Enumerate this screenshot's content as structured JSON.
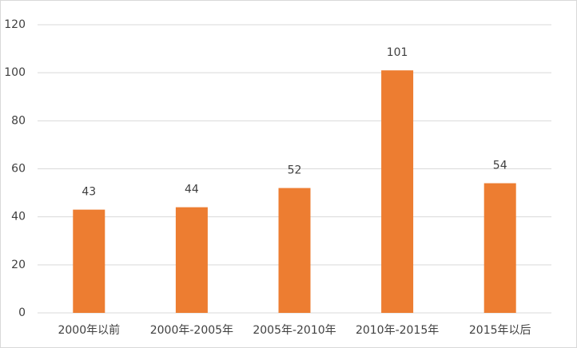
{
  "chart_data": {
    "type": "bar",
    "categories": [
      "2000年以前",
      "2000年-2005年",
      "2005年-2010年",
      "2010年-2015年",
      "2015年以后"
    ],
    "values": [
      43,
      44,
      52,
      101,
      54
    ],
    "color": "#ed7d31",
    "ylim": [
      0,
      120
    ],
    "yticks": [
      0,
      20,
      40,
      60,
      80,
      100,
      120
    ],
    "grid": true
  }
}
